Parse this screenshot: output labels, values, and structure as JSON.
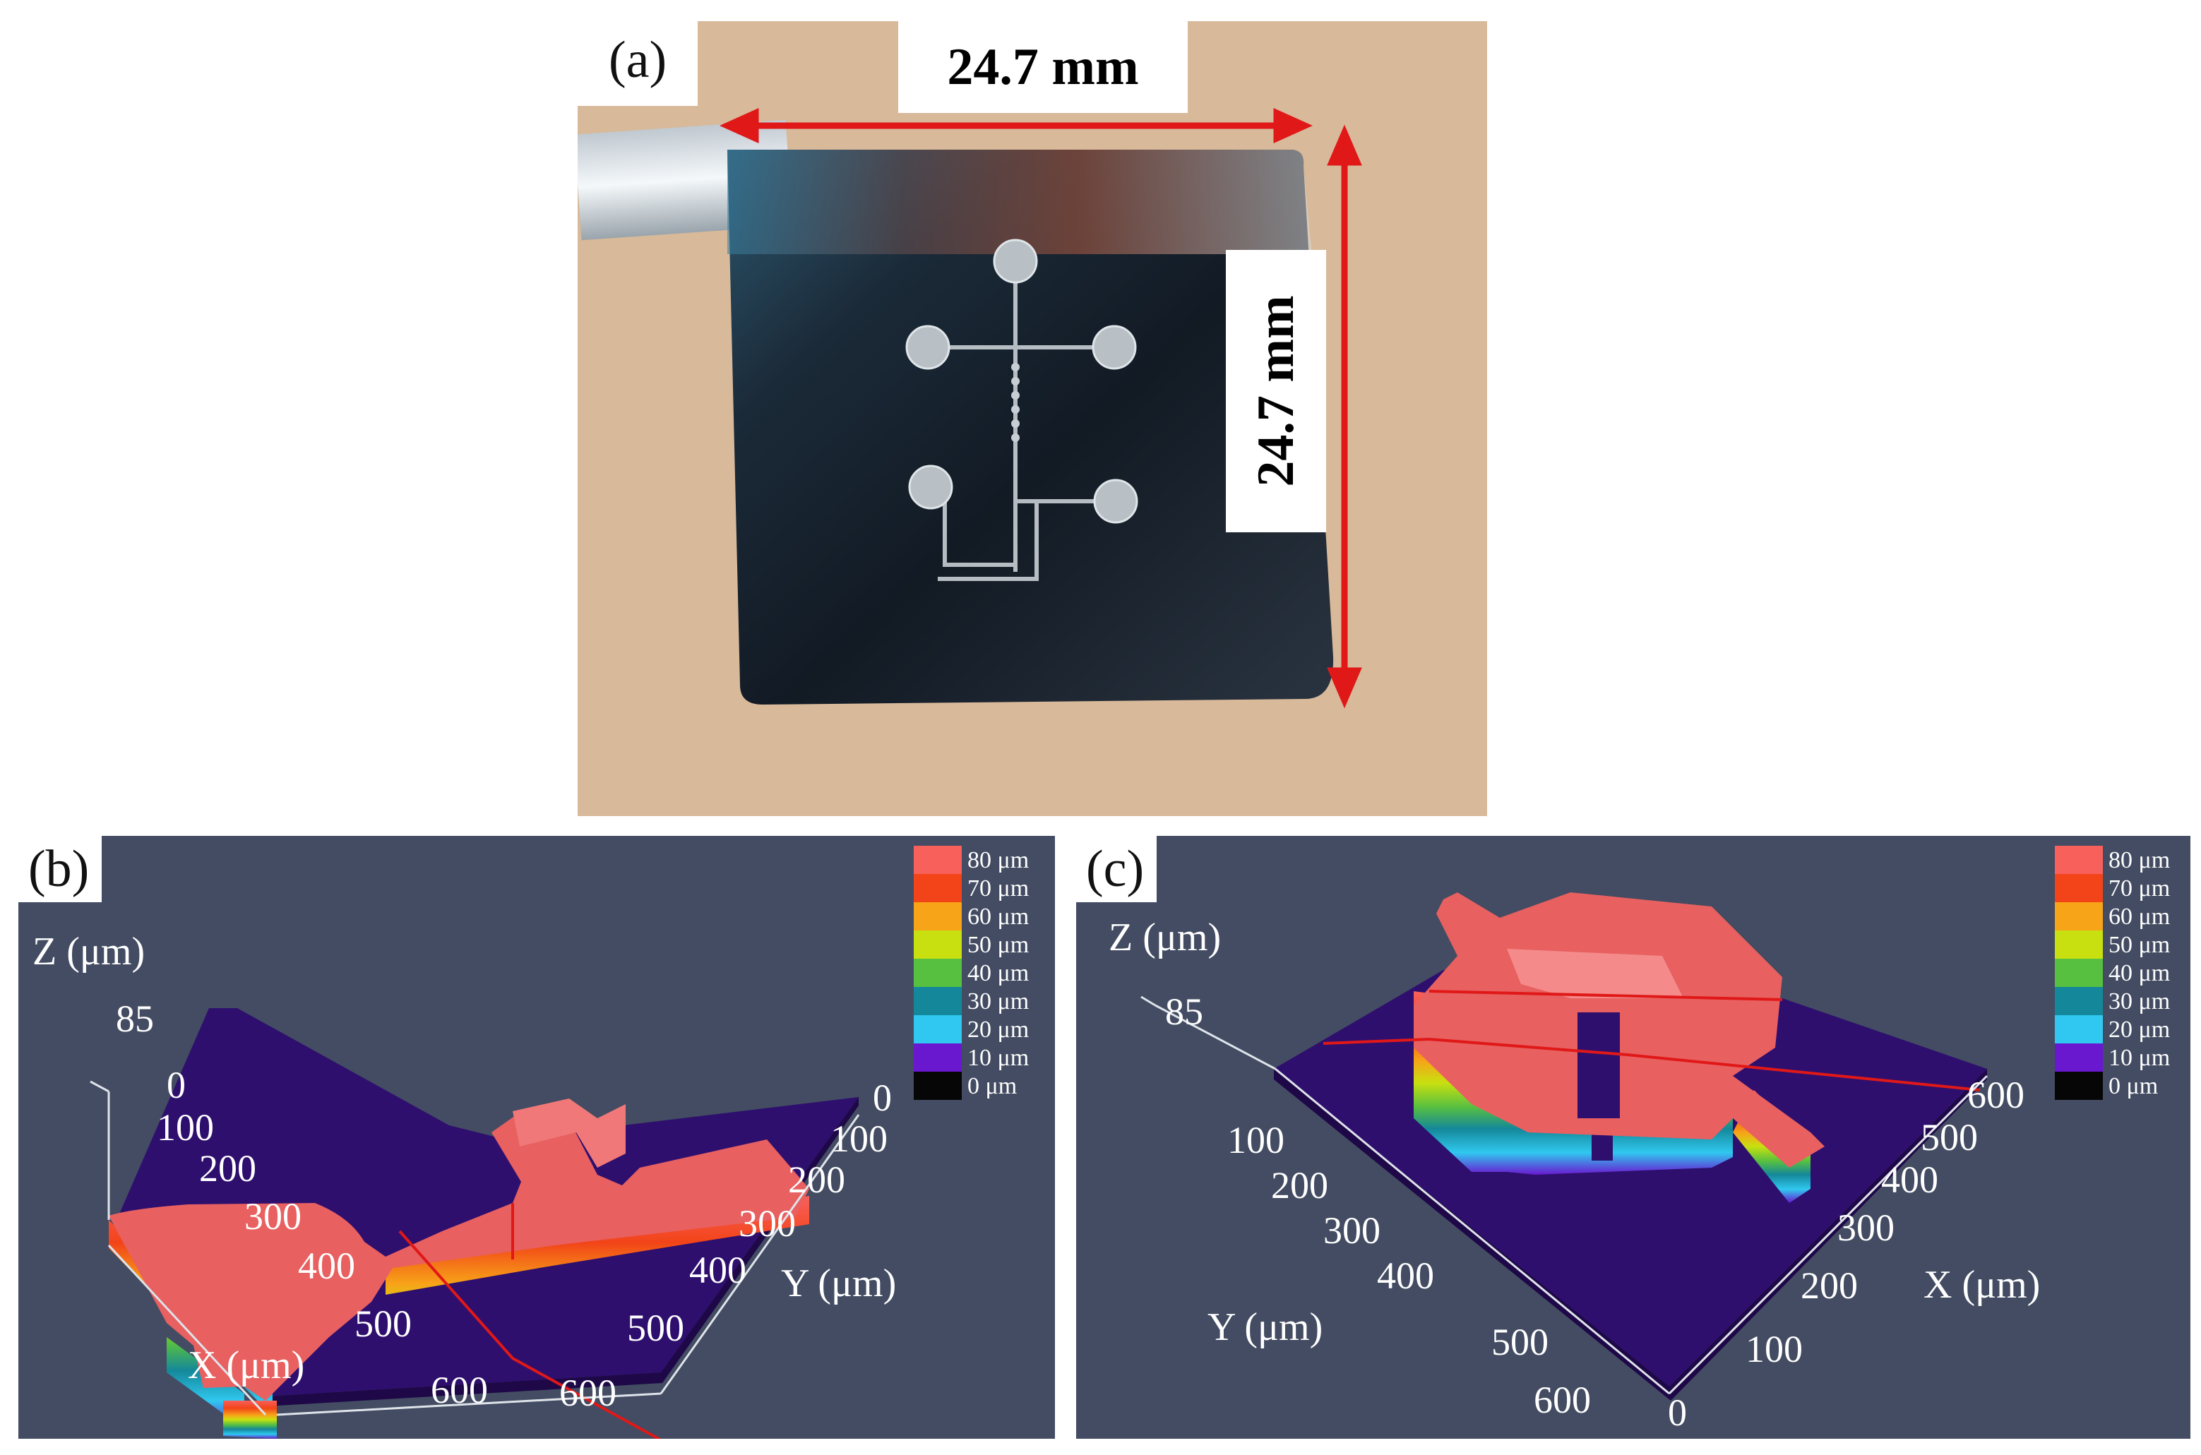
{
  "panels": {
    "a": {
      "label": "(a)",
      "width_label": "24.7 mm",
      "height_label": "24.7 mm"
    },
    "b": {
      "label": "(b)",
      "z_axis_label": "Z (μm)",
      "z_ticks": [
        "85",
        "0"
      ],
      "x_axis_label": "X (μm)",
      "x_ticks": [
        "100",
        "200",
        "300",
        "400",
        "500",
        "600"
      ],
      "y_axis_label": "Y (μm)",
      "y_ticks": [
        "0",
        "100",
        "200",
        "300",
        "400",
        "500",
        "600"
      ]
    },
    "c": {
      "label": "(c)",
      "z_axis_label": "Z (μm)",
      "z_ticks": [
        "85"
      ],
      "x_axis_label": "X (μm)",
      "x_ticks": [
        "600",
        "500",
        "400",
        "300",
        "200",
        "100",
        "0"
      ],
      "y_axis_label": "Y (μm)",
      "y_ticks": [
        "100",
        "200",
        "300",
        "400",
        "500",
        "600"
      ]
    }
  },
  "legend": [
    {
      "label": "80 μm",
      "color": "#f8605c"
    },
    {
      "label": "70 μm",
      "color": "#f24418"
    },
    {
      "label": "60 μm",
      "color": "#f7a418"
    },
    {
      "label": "50 μm",
      "color": "#c8e010"
    },
    {
      "label": "40 μm",
      "color": "#58c040"
    },
    {
      "label": "30 μm",
      "color": "#14889a"
    },
    {
      "label": "20 μm",
      "color": "#30c8f0"
    },
    {
      "label": "10 μm",
      "color": "#6a18d0"
    },
    {
      "label": "0 μm",
      "color": "#060606"
    }
  ],
  "colors": {
    "plot_background": "#434c62",
    "substrate": "#2e0f6e",
    "structure_top": "#e86060",
    "dimension_arrow": "#e01818",
    "photo_background": "#d8b99a",
    "plate": "#1e2630"
  }
}
